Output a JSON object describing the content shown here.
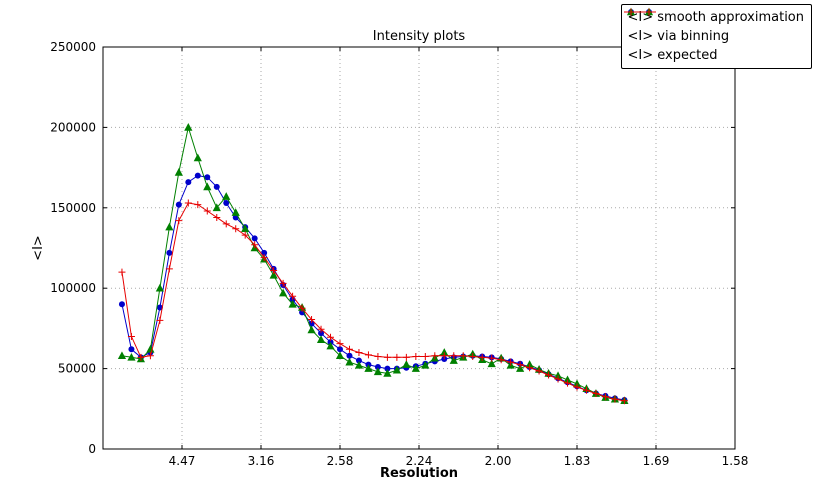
{
  "chart_data": {
    "type": "line",
    "title": "Intensity plots",
    "xlabel": "Resolution",
    "ylabel": "<I>",
    "grid": true,
    "legend_position": "upper right",
    "x_axis": {
      "lim": [
        0,
        0.4
      ],
      "ticks": [
        {
          "pos": 0.05,
          "label": "4.47"
        },
        {
          "pos": 0.1,
          "label": "3.16"
        },
        {
          "pos": 0.15,
          "label": "2.58"
        },
        {
          "pos": 0.2,
          "label": "2.24"
        },
        {
          "pos": 0.25,
          "label": "2.00"
        },
        {
          "pos": 0.3,
          "label": "1.83"
        },
        {
          "pos": 0.35,
          "label": "1.69"
        },
        {
          "pos": 0.4,
          "label": "1.58"
        }
      ]
    },
    "y_axis": {
      "lim": [
        0,
        250000
      ],
      "ticks": [
        {
          "pos": 0,
          "label": "0"
        },
        {
          "pos": 50000,
          "label": "50000"
        },
        {
          "pos": 100000,
          "label": "100000"
        },
        {
          "pos": 150000,
          "label": "150000"
        },
        {
          "pos": 200000,
          "label": "200000"
        },
        {
          "pos": 250000,
          "label": "250000"
        }
      ]
    },
    "x": [
      0.012,
      0.018,
      0.024,
      0.03,
      0.036,
      0.042,
      0.048,
      0.054,
      0.06,
      0.066,
      0.072,
      0.078,
      0.084,
      0.09,
      0.096,
      0.102,
      0.108,
      0.114,
      0.12,
      0.126,
      0.132,
      0.138,
      0.144,
      0.15,
      0.156,
      0.162,
      0.168,
      0.174,
      0.18,
      0.186,
      0.192,
      0.198,
      0.204,
      0.21,
      0.216,
      0.222,
      0.228,
      0.234,
      0.24,
      0.246,
      0.252,
      0.258,
      0.264,
      0.27,
      0.276,
      0.282,
      0.288,
      0.294,
      0.3,
      0.306,
      0.312,
      0.318,
      0.324,
      0.33
    ],
    "series": [
      {
        "name": "<I> smooth approximation",
        "color": "#0000cc",
        "marker": "circle",
        "values": [
          90000,
          62000,
          57000,
          60000,
          88000,
          122000,
          152000,
          166000,
          170000,
          169000,
          163000,
          153000,
          144000,
          138000,
          131000,
          122000,
          112000,
          102000,
          93000,
          85000,
          78000,
          72000,
          66500,
          62000,
          58000,
          55000,
          52500,
          51000,
          50000,
          50000,
          50500,
          51500,
          53000,
          54500,
          56000,
          57000,
          57500,
          58000,
          57500,
          57000,
          56000,
          54500,
          53000,
          51000,
          49000,
          46500,
          44000,
          41500,
          39000,
          36500,
          34500,
          33000,
          31500,
          30500
        ]
      },
      {
        "name": "<I> via binning",
        "color": "#008000",
        "marker": "triangle",
        "values": [
          58000,
          57000,
          56000,
          62000,
          100000,
          138000,
          172000,
          200000,
          181000,
          163000,
          150000,
          157000,
          147000,
          137000,
          125000,
          118000,
          108000,
          97000,
          90000,
          88000,
          74000,
          68000,
          64000,
          58000,
          54000,
          52000,
          50000,
          48000,
          47000,
          49000,
          52500,
          50000,
          52000,
          56500,
          60000,
          55000,
          57000,
          59000,
          55500,
          53000,
          56500,
          52000,
          50000,
          52500,
          49500,
          47000,
          45500,
          43000,
          40500,
          37500,
          34500,
          32000,
          31000,
          30000
        ]
      },
      {
        "name": "<I> expected",
        "color": "#e60000",
        "marker": "plus",
        "values": [
          110000,
          70000,
          57000,
          58000,
          80000,
          112000,
          142000,
          153000,
          152000,
          148000,
          144000,
          140000,
          137000,
          133000,
          127000,
          119000,
          111000,
          103000,
          95000,
          87500,
          80500,
          74500,
          69500,
          65500,
          62000,
          60000,
          58500,
          57500,
          57000,
          57000,
          57000,
          57500,
          57500,
          58000,
          58000,
          58000,
          58000,
          57500,
          57000,
          56500,
          55500,
          54000,
          52500,
          50500,
          48500,
          46000,
          43500,
          41000,
          38500,
          36500,
          34500,
          32500,
          31000,
          30000
        ]
      }
    ]
  }
}
